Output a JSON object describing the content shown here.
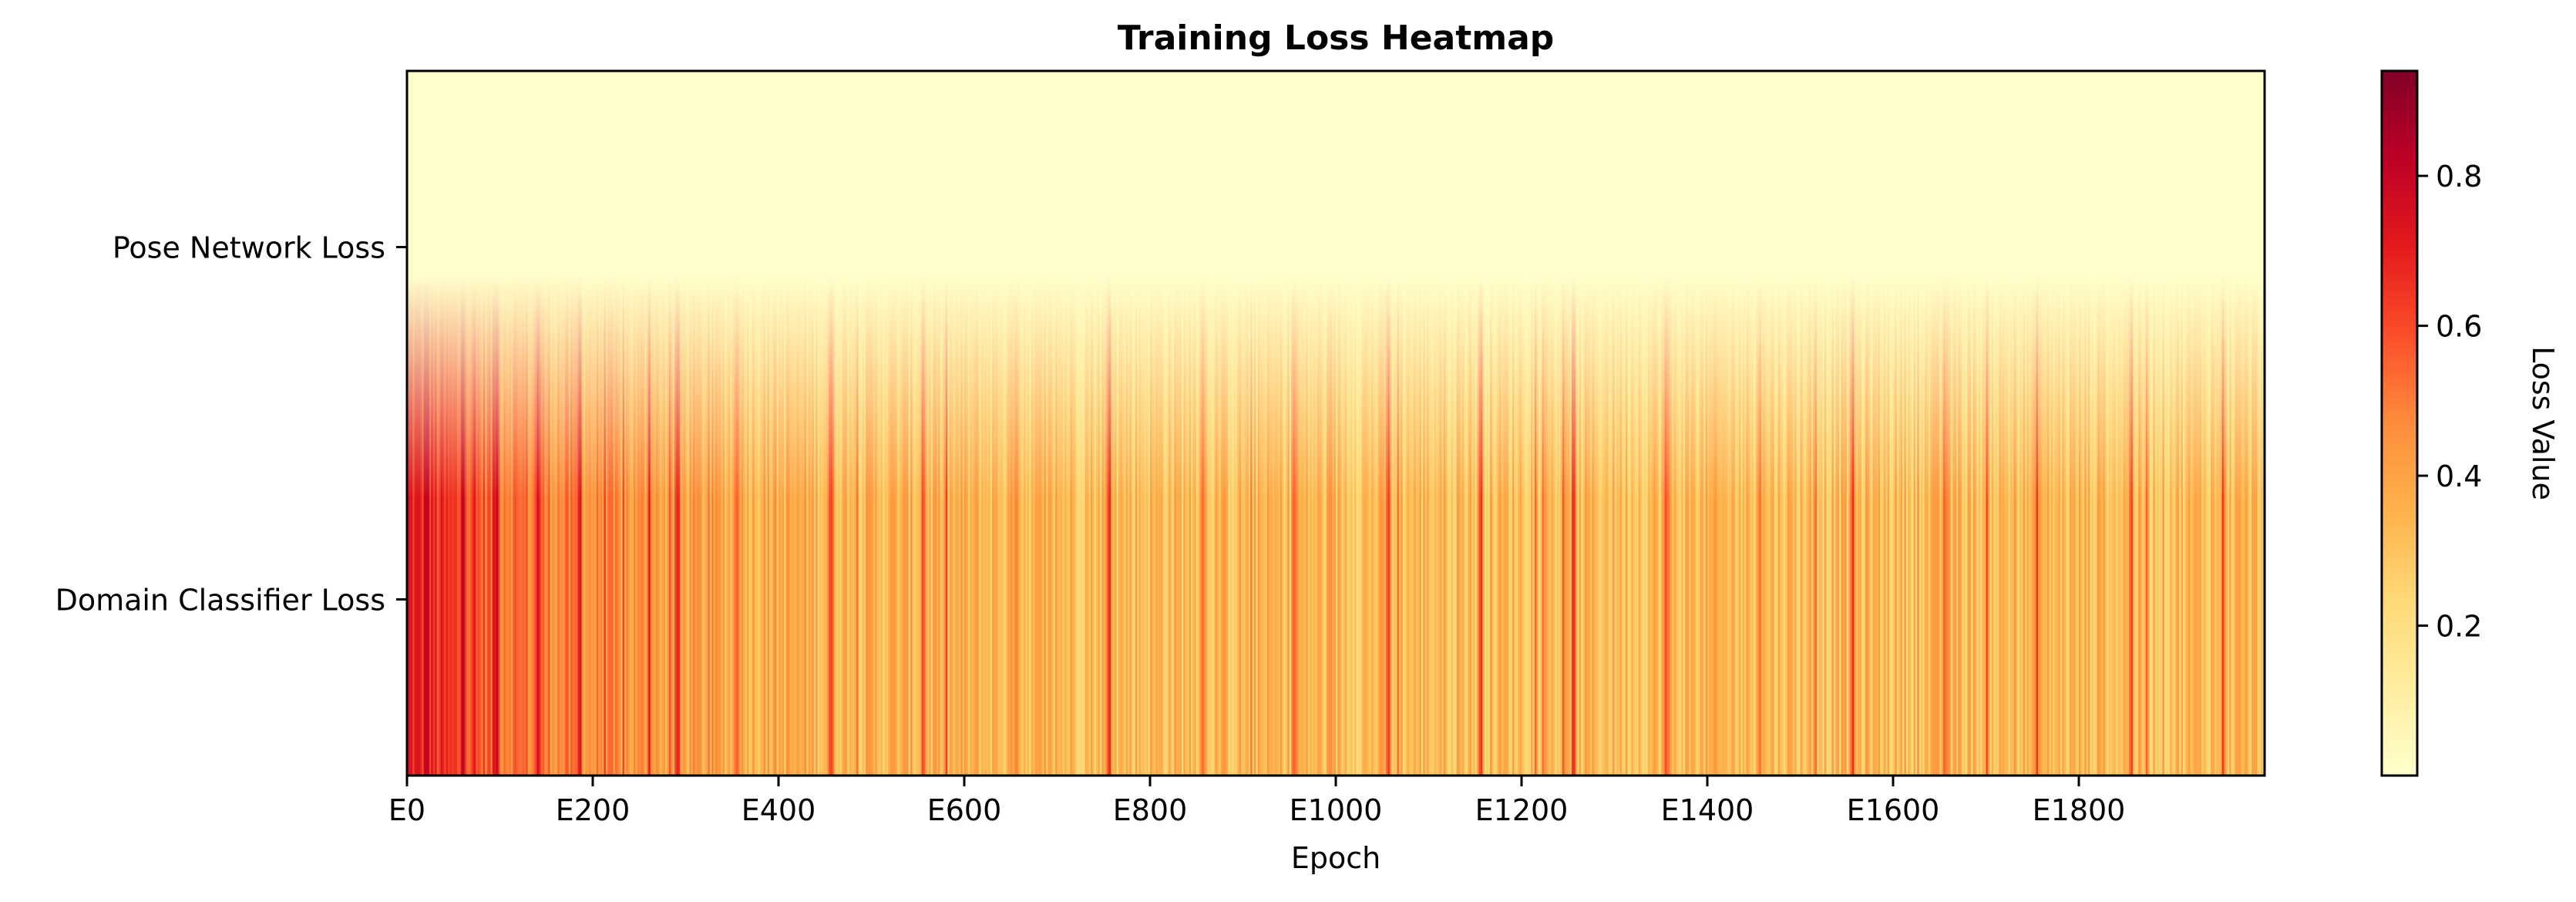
{
  "chart_data": {
    "type": "heatmap",
    "title": "Training Loss Heatmap",
    "xlabel": "Epoch",
    "ylabel": "",
    "rows": [
      "Pose Network Loss",
      "Domain Classifier Loss"
    ],
    "x_range": [
      0,
      2000
    ],
    "x_ticks": [
      "E0",
      "E200",
      "E400",
      "E600",
      "E800",
      "E1000",
      "E1200",
      "E1400",
      "E1600",
      "E1800"
    ],
    "x_tick_values": [
      0,
      200,
      400,
      600,
      800,
      1000,
      1200,
      1400,
      1600,
      1800
    ],
    "interpolation": "bilinear",
    "colormap": "YlOrRd",
    "colormap_stops": [
      "#ffffcc",
      "#ffeda0",
      "#fed976",
      "#feb24c",
      "#fd8d3c",
      "#fc4e2a",
      "#e31a1c",
      "#bd0026",
      "#800026"
    ],
    "vmin": 0.0,
    "vmax": 0.94,
    "colorbar": {
      "label": "Loss Value",
      "ticks": [
        0.2,
        0.4,
        0.6,
        0.8
      ],
      "tick_labels": [
        "0.2",
        "0.4",
        "0.6",
        "0.8"
      ]
    },
    "series": [
      {
        "name": "Pose Network Loss",
        "values_summary": "approximately constant near 0.0 across all epochs",
        "approx_value": 0.0
      },
      {
        "name": "Domain Classifier Loss",
        "values_summary": "starts near 0.7, decays to ~0.3-0.4 with noisy spikes up to ~0.7",
        "approx_start": 0.7,
        "approx_end": 0.33,
        "spike_epochs": [
          20,
          60,
          95,
          140,
          185,
          260,
          290,
          355,
          455,
          555,
          655,
          755,
          855,
          955,
          1055,
          1155,
          1255,
          1355,
          1455,
          1555,
          1655,
          1755,
          1855,
          1955
        ]
      }
    ]
  }
}
